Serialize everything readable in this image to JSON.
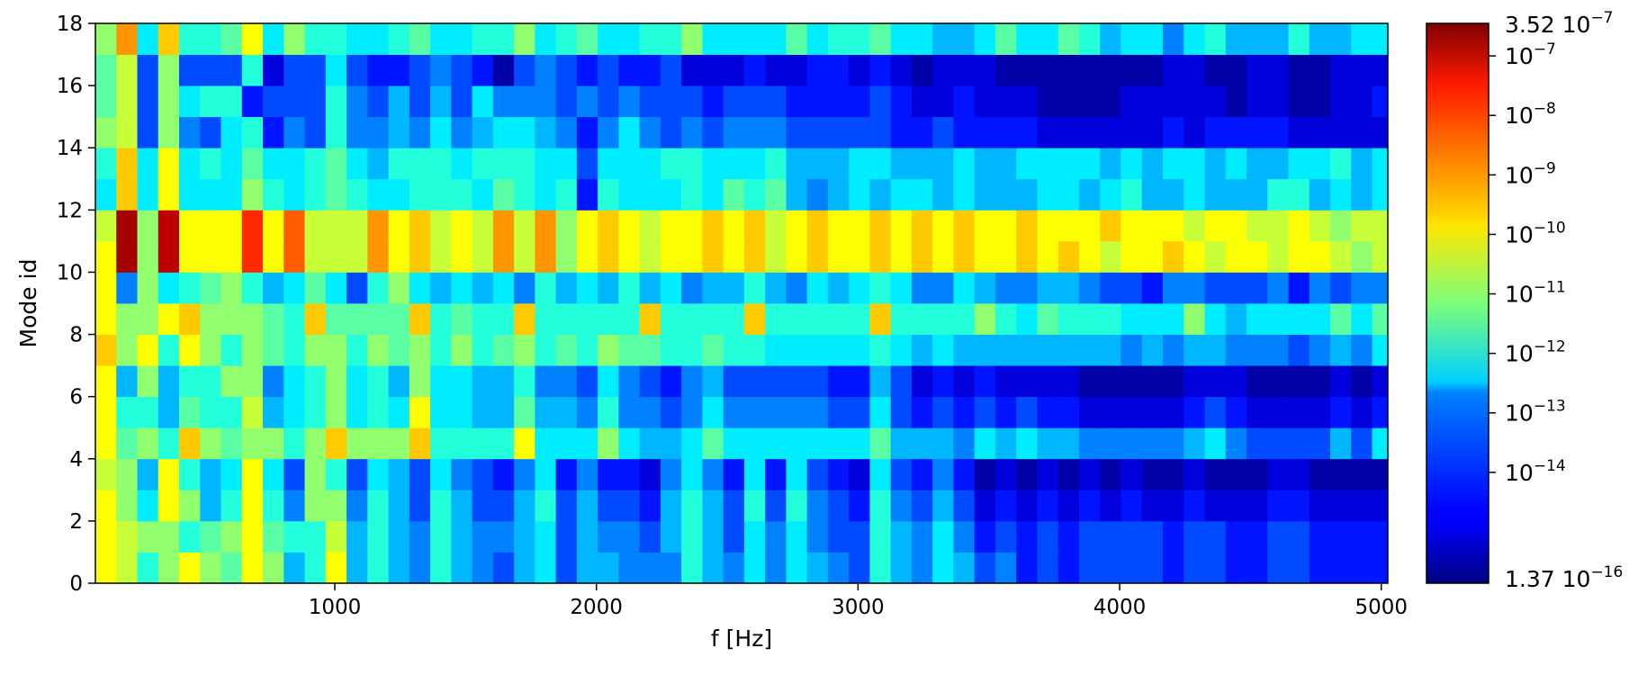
{
  "chart_data": {
    "type": "heatmap",
    "xlabel": "f [Hz]",
    "ylabel": "Mode id",
    "x_tick_labels": [
      "1000",
      "2000",
      "3000",
      "4000",
      "5000"
    ],
    "y_tick_labels": [
      "0",
      "2",
      "4",
      "6",
      "8",
      "10",
      "12",
      "14",
      "16",
      "18"
    ],
    "x_range": [
      85,
      5025
    ],
    "y_range": [
      0,
      18
    ],
    "x_ticks": [
      1000,
      2000,
      3000,
      4000,
      5000
    ],
    "y_ticks": [
      0,
      2,
      4,
      6,
      8,
      10,
      12,
      14,
      16,
      18
    ],
    "f_start_hz": 100,
    "f_step_hz": 80,
    "n_freq": 62,
    "n_modes": 18,
    "colormap": "jet",
    "color_scale": "log",
    "z_range": [
      1.37e-16,
      3.52e-07
    ],
    "colorbar": {
      "top_label": "3.52  10",
      "top_exp": "−7",
      "bottom_label": "1.37  10",
      "bottom_exp": "−16",
      "tick_values": [
        1e-07,
        1e-08,
        1e-09,
        1e-10,
        1e-11,
        1e-12,
        1e-13,
        1e-14
      ],
      "tick_base": "10",
      "tick_exponents": [
        "−7",
        "−8",
        "−9",
        "−10",
        "−11",
        "−12",
        "−13",
        "−14"
      ]
    },
    "rows_log10": [
      [
        -10,
        -10.5,
        -12,
        -11,
        -10,
        -11,
        -11.5,
        -10,
        -11,
        -13,
        -12,
        -10,
        -13,
        -12,
        -13,
        -13.5,
        -12,
        -13,
        -13.5,
        -14,
        -13,
        -12.5,
        -14,
        -13,
        -13,
        -13.5,
        -13.5,
        -13.5,
        -12,
        -13,
        -13.5,
        -12.5,
        -13.5,
        -12.5,
        -13,
        -13.5,
        -14,
        -12,
        -13,
        -13.5,
        -12.5,
        -13,
        -14,
        -13.5,
        -14.5,
        -14,
        -14.5,
        -14,
        -14,
        -14,
        -14,
        -14.5,
        -14,
        -14,
        -14.5,
        -14.5,
        -14,
        -14,
        -14.5,
        -14.5,
        -14.5,
        -14.5
      ],
      [
        -10,
        -10.5,
        -11,
        -11,
        -12,
        -11.5,
        -11,
        -10,
        -11.5,
        -12,
        -12,
        -10.5,
        -13,
        -12,
        -13,
        -13.5,
        -12,
        -13,
        -13.5,
        -13.5,
        -13,
        -12.5,
        -14,
        -13,
        -13.5,
        -13.5,
        -14,
        -13,
        -12,
        -13,
        -14,
        -12.5,
        -13.5,
        -12.5,
        -13.5,
        -14,
        -14,
        -12,
        -13,
        -13.5,
        -12.5,
        -13.5,
        -14.5,
        -14,
        -14.5,
        -14,
        -14.5,
        -14,
        -14,
        -14,
        -14,
        -14.5,
        -14,
        -14,
        -14.5,
        -14.5,
        -14,
        -14,
        -14.5,
        -14.5,
        -14.5,
        -14.5
      ],
      [
        -10,
        -11,
        -12.5,
        -10,
        -11,
        -13,
        -12,
        -10,
        -12,
        -13.5,
        -11,
        -11,
        -13.5,
        -12,
        -13,
        -14,
        -12,
        -13,
        -14,
        -14,
        -13,
        -12,
        -14,
        -13,
        -14,
        -14,
        -14.5,
        -13,
        -12,
        -13,
        -14,
        -12,
        -14,
        -12,
        -13.5,
        -14,
        -14.5,
        -12,
        -13.5,
        -14,
        -13,
        -14,
        -15,
        -14.5,
        -15,
        -14.5,
        -15,
        -14.5,
        -15,
        -14.5,
        -15,
        -15,
        -14.5,
        -15,
        -15,
        -15,
        -14.5,
        -14.5,
        -15,
        -15,
        -15,
        -15
      ],
      [
        -10.5,
        -11,
        -13,
        -10,
        -12,
        -13,
        -12.5,
        -10,
        -12.5,
        -14,
        -11,
        -12,
        -14,
        -12.5,
        -13,
        -14,
        -12.5,
        -13.5,
        -14,
        -14.5,
        -13.5,
        -12.5,
        -14.5,
        -13.5,
        -14.5,
        -14.5,
        -15,
        -13.5,
        -12.5,
        -13.5,
        -14.5,
        -12.5,
        -14.5,
        -12.5,
        -14,
        -14.5,
        -15,
        -12.5,
        -14,
        -14.5,
        -13.5,
        -14.5,
        -15.5,
        -15,
        -15.5,
        -15,
        -15.5,
        -15,
        -15.5,
        -15,
        -15.5,
        -15.5,
        -15,
        -15.5,
        -15.5,
        -15.5,
        -15,
        -15,
        -15.5,
        -15.5,
        -15.5,
        -15.5
      ],
      [
        -10,
        -11.5,
        -11,
        -12,
        -9.5,
        -11,
        -11.5,
        -11,
        -11,
        -12,
        -11,
        -9.5,
        -11,
        -11,
        -11,
        -9.5,
        -12,
        -12,
        -12,
        -12,
        -10,
        -12.5,
        -12.5,
        -12.5,
        -11,
        -12.5,
        -13,
        -13,
        -12.5,
        -11.5,
        -12.5,
        -12.5,
        -12.5,
        -12.5,
        -12.5,
        -12.5,
        -12.5,
        -11.5,
        -13,
        -13,
        -13,
        -13.5,
        -12.5,
        -13,
        -12.5,
        -13,
        -13,
        -13.5,
        -13.5,
        -13.5,
        -13.5,
        -13.5,
        -13,
        -12.5,
        -13.5,
        -14,
        -14,
        -14,
        -14,
        -13,
        -14,
        -12.5
      ],
      [
        -10,
        -12,
        -12,
        -13,
        -11.5,
        -12,
        -12,
        -10.5,
        -13,
        -12.5,
        -12,
        -11,
        -12.5,
        -12,
        -12.5,
        -10,
        -12.5,
        -12.5,
        -13,
        -13,
        -11.5,
        -13,
        -13,
        -13.5,
        -12,
        -13.5,
        -13.5,
        -14,
        -13.5,
        -12.5,
        -13.5,
        -13.5,
        -13.5,
        -13.5,
        -13.5,
        -14,
        -14,
        -12.5,
        -14,
        -14.5,
        -14,
        -14.5,
        -14,
        -14.5,
        -14,
        -14.5,
        -14.5,
        -15,
        -15,
        -15,
        -15,
        -15,
        -14.5,
        -14,
        -14.5,
        -15,
        -15,
        -15,
        -15,
        -14.5,
        -15,
        -14.5
      ],
      [
        -10,
        -13,
        -11,
        -13,
        -12,
        -12,
        -11,
        -11,
        -13.5,
        -12.5,
        -12,
        -11,
        -12.5,
        -12,
        -13,
        -11,
        -12.5,
        -12.5,
        -13,
        -13,
        -12,
        -13.5,
        -13.5,
        -14,
        -12.5,
        -13.5,
        -14,
        -14.5,
        -13.5,
        -13,
        -14,
        -14,
        -14,
        -14,
        -14,
        -14.5,
        -14.5,
        -13,
        -14,
        -15,
        -14.5,
        -15,
        -14.5,
        -15,
        -15,
        -15,
        -15,
        -15.5,
        -15.5,
        -15.5,
        -15.5,
        -15.5,
        -15,
        -15,
        -15,
        -15.5,
        -15.5,
        -15.5,
        -15.5,
        -15,
        -15.5,
        -15
      ],
      [
        -9.5,
        -11,
        -10,
        -12,
        -10,
        -11,
        -12,
        -11,
        -11.5,
        -12,
        -11,
        -11,
        -12,
        -11,
        -11.5,
        -11,
        -12,
        -11,
        -12,
        -11.5,
        -11,
        -12,
        -11.5,
        -12,
        -11,
        -11.5,
        -11.5,
        -12,
        -12,
        -11.5,
        -12,
        -12,
        -12.5,
        -12.5,
        -12.5,
        -12.5,
        -12.5,
        -12,
        -12.5,
        -13,
        -12.5,
        -13,
        -13,
        -13,
        -13,
        -13,
        -13,
        -13,
        -13,
        -13.5,
        -13,
        -13.5,
        -13,
        -13,
        -13.5,
        -13.5,
        -13.5,
        -14,
        -13.5,
        -13,
        -13.5,
        -12.5
      ],
      [
        -10,
        -11,
        -11,
        -10,
        -9.5,
        -11,
        -11,
        -11,
        -11.5,
        -12,
        -9.5,
        -11.5,
        -11.5,
        -11.5,
        -11.5,
        -9.5,
        -12,
        -11.5,
        -12,
        -12,
        -9.5,
        -12,
        -12,
        -12,
        -12,
        -12,
        -9.5,
        -12,
        -12,
        -12,
        -12,
        -9.5,
        -12,
        -12,
        -12,
        -12,
        -12,
        -9.5,
        -12,
        -12,
        -12,
        -12,
        -11,
        -12,
        -12.5,
        -11.5,
        -12,
        -12,
        -12,
        -12.5,
        -12.5,
        -12.5,
        -11,
        -12.5,
        -13,
        -12.5,
        -12.5,
        -12.5,
        -12.5,
        -11.5,
        -12.5,
        -11.5
      ],
      [
        -10,
        -13.5,
        -11,
        -12.5,
        -12,
        -11.5,
        -11,
        -12,
        -13,
        -12.5,
        -11.5,
        -12.5,
        -14,
        -12,
        -11,
        -12.5,
        -13,
        -12.5,
        -13,
        -12.5,
        -13.5,
        -12,
        -13,
        -12.5,
        -13,
        -12,
        -13,
        -12.5,
        -13.5,
        -13,
        -13,
        -12,
        -13,
        -13.5,
        -12.5,
        -13,
        -12.5,
        -12,
        -12.5,
        -13.5,
        -13.5,
        -12.5,
        -13,
        -13.5,
        -13.5,
        -13,
        -13,
        -13.5,
        -14,
        -14,
        -14.5,
        -13.5,
        -13.5,
        -14,
        -14,
        -14,
        -13.5,
        -14.5,
        -13.5,
        -14,
        -13.5,
        -13.5
      ],
      [
        -10,
        -6.8,
        -11,
        -7,
        -10,
        -10,
        -10,
        -8,
        -10,
        -8.5,
        -10.5,
        -10.5,
        -10.5,
        -9,
        -10,
        -9.5,
        -10.5,
        -10,
        -10.5,
        -9,
        -10.5,
        -9,
        -11,
        -10,
        -9.5,
        -10,
        -10.5,
        -10,
        -10,
        -9.5,
        -10,
        -9.5,
        -10.5,
        -10,
        -9.5,
        -10,
        -10,
        -9.5,
        -10,
        -9.5,
        -10,
        -9.5,
        -10,
        -10,
        -9.5,
        -10,
        -9.5,
        -10,
        -10.5,
        -10,
        -10,
        -9.5,
        -10,
        -10.5,
        -10,
        -10,
        -10.5,
        -10,
        -10,
        -10.5,
        -11,
        -10.5
      ],
      [
        -10.5,
        -6.8,
        -11,
        -7,
        -10,
        -10,
        -10,
        -8,
        -10,
        -8.5,
        -10.5,
        -10.5,
        -10.5,
        -9,
        -10,
        -9.5,
        -10.5,
        -10,
        -10.5,
        -9,
        -10.5,
        -9,
        -11,
        -10,
        -9.5,
        -10,
        -10.5,
        -10,
        -10,
        -9.5,
        -10,
        -9.5,
        -10.5,
        -10,
        -9.5,
        -10,
        -10,
        -9.5,
        -10,
        -9.5,
        -10,
        -9.5,
        -10,
        -10,
        -9.5,
        -10,
        -10,
        -10,
        -9.5,
        -10,
        -10,
        -10,
        -10.5,
        -10,
        -10,
        -10.5,
        -10.5,
        -10,
        -10.5,
        -11,
        -10.5,
        -10.5
      ],
      [
        -12.5,
        -9.5,
        -12.5,
        -10,
        -12.5,
        -12.5,
        -12.5,
        -11,
        -12,
        -12.5,
        -12,
        -11.5,
        -12,
        -12.5,
        -12.5,
        -12,
        -12,
        -12,
        -12.5,
        -11.5,
        -12,
        -12.5,
        -12,
        -14.5,
        -12,
        -12.5,
        -12.5,
        -12.5,
        -12,
        -12.5,
        -11.5,
        -12,
        -11.5,
        -13,
        -13.5,
        -13,
        -12.5,
        -13,
        -12.5,
        -12.5,
        -13,
        -12.5,
        -13,
        -13,
        -13,
        -12.5,
        -12.5,
        -13,
        -12.5,
        -12,
        -13,
        -13,
        -12.5,
        -13,
        -13,
        -13,
        -12,
        -12,
        -13,
        -12.5,
        -13,
        -12.5
      ],
      [
        -12,
        -9.5,
        -12.5,
        -10,
        -12.5,
        -12,
        -12.5,
        -11.5,
        -12.5,
        -12.5,
        -12,
        -11.5,
        -12.5,
        -13,
        -12,
        -12,
        -12,
        -12.5,
        -12,
        -12,
        -12,
        -12.5,
        -12.5,
        -14,
        -12.5,
        -12.5,
        -12.5,
        -12,
        -12,
        -12.5,
        -12.5,
        -12.5,
        -12,
        -13,
        -13,
        -13,
        -12.5,
        -12.5,
        -13,
        -13,
        -13,
        -12.5,
        -13,
        -13,
        -12.5,
        -12.5,
        -12.5,
        -12.5,
        -13,
        -12.5,
        -13,
        -12.5,
        -12.5,
        -13,
        -12.5,
        -13,
        -13,
        -12.5,
        -12.5,
        -12,
        -13,
        -12.5
      ],
      [
        -11,
        -10.5,
        -14,
        -11,
        -13.5,
        -14,
        -12.5,
        -12,
        -14.5,
        -13.5,
        -14,
        -12,
        -13.5,
        -13.5,
        -13,
        -13.5,
        -12.5,
        -13.5,
        -13,
        -12.5,
        -12.5,
        -13,
        -13.5,
        -14.5,
        -13.5,
        -12.5,
        -13.5,
        -14,
        -13.5,
        -14,
        -13.5,
        -13.5,
        -13.5,
        -14,
        -14,
        -14,
        -14,
        -14,
        -14.5,
        -14.5,
        -14,
        -14.5,
        -14.5,
        -14.5,
        -14.5,
        -15,
        -15,
        -15,
        -15,
        -15,
        -15,
        -14.5,
        -15,
        -14.5,
        -14.5,
        -14.5,
        -14.5,
        -15,
        -15,
        -15,
        -15,
        -15
      ],
      [
        -11.5,
        -10.5,
        -14,
        -11,
        -12.5,
        -12,
        -12,
        -14.5,
        -14,
        -14,
        -14,
        -12,
        -13.5,
        -14,
        -13,
        -14,
        -13,
        -14,
        -12.5,
        -13.5,
        -13.5,
        -13.5,
        -14,
        -13.5,
        -14,
        -13.5,
        -14,
        -14,
        -14,
        -14.5,
        -14,
        -14,
        -14,
        -14.5,
        -14.5,
        -14.5,
        -14.5,
        -14,
        -14.5,
        -15,
        -15,
        -14.5,
        -15,
        -15,
        -15,
        -15.5,
        -15.5,
        -15.5,
        -15.5,
        -15,
        -15,
        -15,
        -15,
        -15,
        -15.5,
        -15,
        -15,
        -15.5,
        -15.5,
        -15,
        -15,
        -14.5
      ],
      [
        -11.5,
        -10.5,
        -14,
        -11,
        -14,
        -14,
        -14,
        -12,
        -15,
        -14,
        -14,
        -12.5,
        -14,
        -14.5,
        -14.5,
        -14,
        -13.5,
        -14,
        -14.5,
        -15.5,
        -14,
        -13.5,
        -14,
        -14.5,
        -14,
        -14.5,
        -14.5,
        -14,
        -15,
        -15,
        -15,
        -14.5,
        -15,
        -15,
        -14.5,
        -14.5,
        -15,
        -14.5,
        -15,
        -15.5,
        -15,
        -15,
        -15,
        -15.5,
        -15.5,
        -15.5,
        -15.5,
        -15.5,
        -15.5,
        -15.5,
        -15.5,
        -15,
        -15,
        -15.5,
        -15.5,
        -15,
        -15,
        -15.5,
        -15.5,
        -15,
        -15,
        -15
      ],
      [
        -11,
        -9,
        -12.5,
        -9.5,
        -12,
        -12,
        -11.5,
        -10,
        -12.5,
        -11,
        -12,
        -12,
        -12.5,
        -12.5,
        -12,
        -11.5,
        -12.5,
        -12.5,
        -12,
        -12,
        -11,
        -12.5,
        -12,
        -11.5,
        -12.5,
        -12.5,
        -12,
        -12,
        -11,
        -12.5,
        -12.5,
        -12.5,
        -12.5,
        -11.5,
        -12.5,
        -12,
        -12,
        -11.5,
        -12.5,
        -12.5,
        -13,
        -13,
        -12.5,
        -11.5,
        -12.5,
        -12.5,
        -11.5,
        -12,
        -13,
        -12.5,
        -12.5,
        -13.5,
        -12.5,
        -12,
        -13,
        -13,
        -13,
        -12,
        -13,
        -13,
        -12.5,
        -12.5
      ]
    ]
  }
}
